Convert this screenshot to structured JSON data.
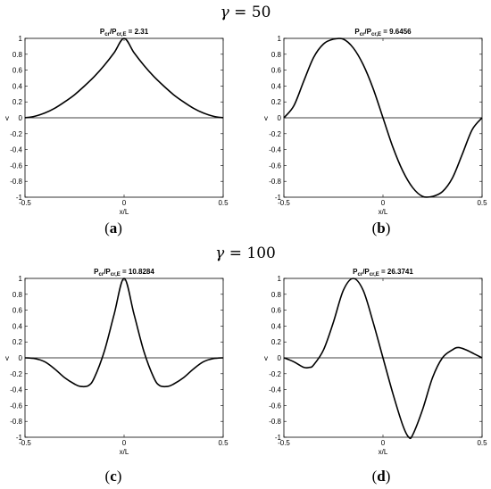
{
  "rows": [
    {
      "prefix": "γ = ",
      "value": "50"
    },
    {
      "prefix": "γ = ",
      "value": "100"
    }
  ],
  "panel_labels": [
    "a",
    "b",
    "c",
    "d"
  ],
  "chart_data": [
    {
      "type": "line",
      "title_prefix": "P",
      "title_sub1": "cr",
      "title_mid": "/P",
      "title_sub2": "cr,E",
      "title_value": " = 2.31",
      "xlabel": "x/L",
      "ylabel": "v",
      "xlim": [
        -0.5,
        0.5
      ],
      "ylim": [
        -1,
        1
      ],
      "xticks": [
        "-0.5",
        "0",
        "0.5"
      ],
      "yticks": [
        "1",
        "0.8",
        "0.6",
        "0.4",
        "0.2",
        "0",
        "-0.2",
        "-0.4",
        "-0.6",
        "-0.8",
        "-1"
      ],
      "series": [
        {
          "x": [
            -0.5,
            -0.45,
            -0.4,
            -0.35,
            -0.3,
            -0.25,
            -0.2,
            -0.15,
            -0.1,
            -0.05,
            0,
            0.05,
            0.1,
            0.15,
            0.2,
            0.25,
            0.3,
            0.35,
            0.4,
            0.45,
            0.5
          ],
          "y": [
            0,
            0.02,
            0.06,
            0.12,
            0.2,
            0.29,
            0.4,
            0.52,
            0.66,
            0.82,
            1,
            0.82,
            0.66,
            0.52,
            0.4,
            0.29,
            0.2,
            0.12,
            0.06,
            0.02,
            0
          ]
        }
      ]
    },
    {
      "type": "line",
      "title_prefix": "P",
      "title_sub1": "cr",
      "title_mid": "/P",
      "title_sub2": "cr,E",
      "title_value": " = 9.6456",
      "xlabel": "x/L",
      "ylabel": "v",
      "xlim": [
        -0.5,
        0.5
      ],
      "ylim": [
        -1,
        1
      ],
      "xticks": [
        "-0.5",
        "0",
        "0.5"
      ],
      "yticks": [
        "1",
        "0.8",
        "0.6",
        "0.4",
        "0.2",
        "0",
        "-0.2",
        "-0.4",
        "-0.6",
        "-0.8",
        "-1"
      ],
      "series": [
        {
          "x": [
            -0.5,
            -0.45,
            -0.4,
            -0.35,
            -0.3,
            -0.25,
            -0.2,
            -0.15,
            -0.1,
            -0.05,
            0,
            0.05,
            0.1,
            0.15,
            0.2,
            0.25,
            0.3,
            0.35,
            0.4,
            0.45,
            0.5
          ],
          "y": [
            0,
            0.15,
            0.46,
            0.76,
            0.93,
            0.99,
            0.99,
            0.88,
            0.67,
            0.37,
            0,
            -0.37,
            -0.67,
            -0.88,
            -0.99,
            -0.99,
            -0.93,
            -0.76,
            -0.46,
            -0.15,
            0
          ]
        }
      ]
    },
    {
      "type": "line",
      "title_prefix": "P",
      "title_sub1": "cr",
      "title_mid": "/P",
      "title_sub2": "cr,E",
      "title_value": " = 10.8284",
      "xlabel": "x/L",
      "ylabel": "v",
      "xlim": [
        -0.5,
        0.5
      ],
      "ylim": [
        -1,
        1
      ],
      "xticks": [
        "-0.5",
        "0",
        "0.5"
      ],
      "yticks": [
        "1",
        "0.8",
        "0.6",
        "0.4",
        "0.2",
        "0",
        "-0.2",
        "-0.4",
        "-0.6",
        "-0.8",
        "-1"
      ],
      "series": [
        {
          "x": [
            -0.5,
            -0.45,
            -0.4,
            -0.35,
            -0.3,
            -0.25,
            -0.22,
            -0.18,
            -0.15,
            -0.1,
            -0.05,
            0,
            0.05,
            0.1,
            0.15,
            0.18,
            0.22,
            0.25,
            0.3,
            0.35,
            0.4,
            0.45,
            0.5
          ],
          "y": [
            0,
            -0.01,
            -0.05,
            -0.14,
            -0.25,
            -0.33,
            -0.36,
            -0.35,
            -0.25,
            0.08,
            0.55,
            1,
            0.55,
            0.08,
            -0.25,
            -0.35,
            -0.36,
            -0.33,
            -0.25,
            -0.14,
            -0.05,
            -0.01,
            0
          ]
        }
      ]
    },
    {
      "type": "line",
      "title_prefix": "P",
      "title_sub1": "cr",
      "title_mid": "/P",
      "title_sub2": "cr,E",
      "title_value": " = 26.3741",
      "xlabel": "x/L",
      "ylabel": "v",
      "xlim": [
        -0.5,
        0.5
      ],
      "ylim": [
        -1,
        1
      ],
      "xticks": [
        "-0.5",
        "0",
        "0.5"
      ],
      "yticks": [
        "1",
        "0.8",
        "0.6",
        "0.4",
        "0.2",
        "0",
        "-0.2",
        "-0.4",
        "-0.6",
        "-0.8",
        "-1"
      ],
      "series": [
        {
          "x": [
            -0.5,
            -0.45,
            -0.4,
            -0.37,
            -0.35,
            -0.3,
            -0.25,
            -0.2,
            -0.15,
            -0.1,
            -0.05,
            0,
            0.05,
            0.1,
            0.13,
            0.15,
            0.2,
            0.25,
            0.3,
            0.35,
            0.38,
            0.42,
            0.46,
            0.5
          ],
          "y": [
            0,
            -0.05,
            -0.12,
            -0.12,
            -0.09,
            0.1,
            0.45,
            0.85,
            1,
            0.85,
            0.45,
            0,
            -0.45,
            -0.85,
            -1,
            -0.97,
            -0.65,
            -0.25,
            0,
            0.1,
            0.13,
            0.1,
            0.05,
            0
          ]
        }
      ]
    }
  ]
}
